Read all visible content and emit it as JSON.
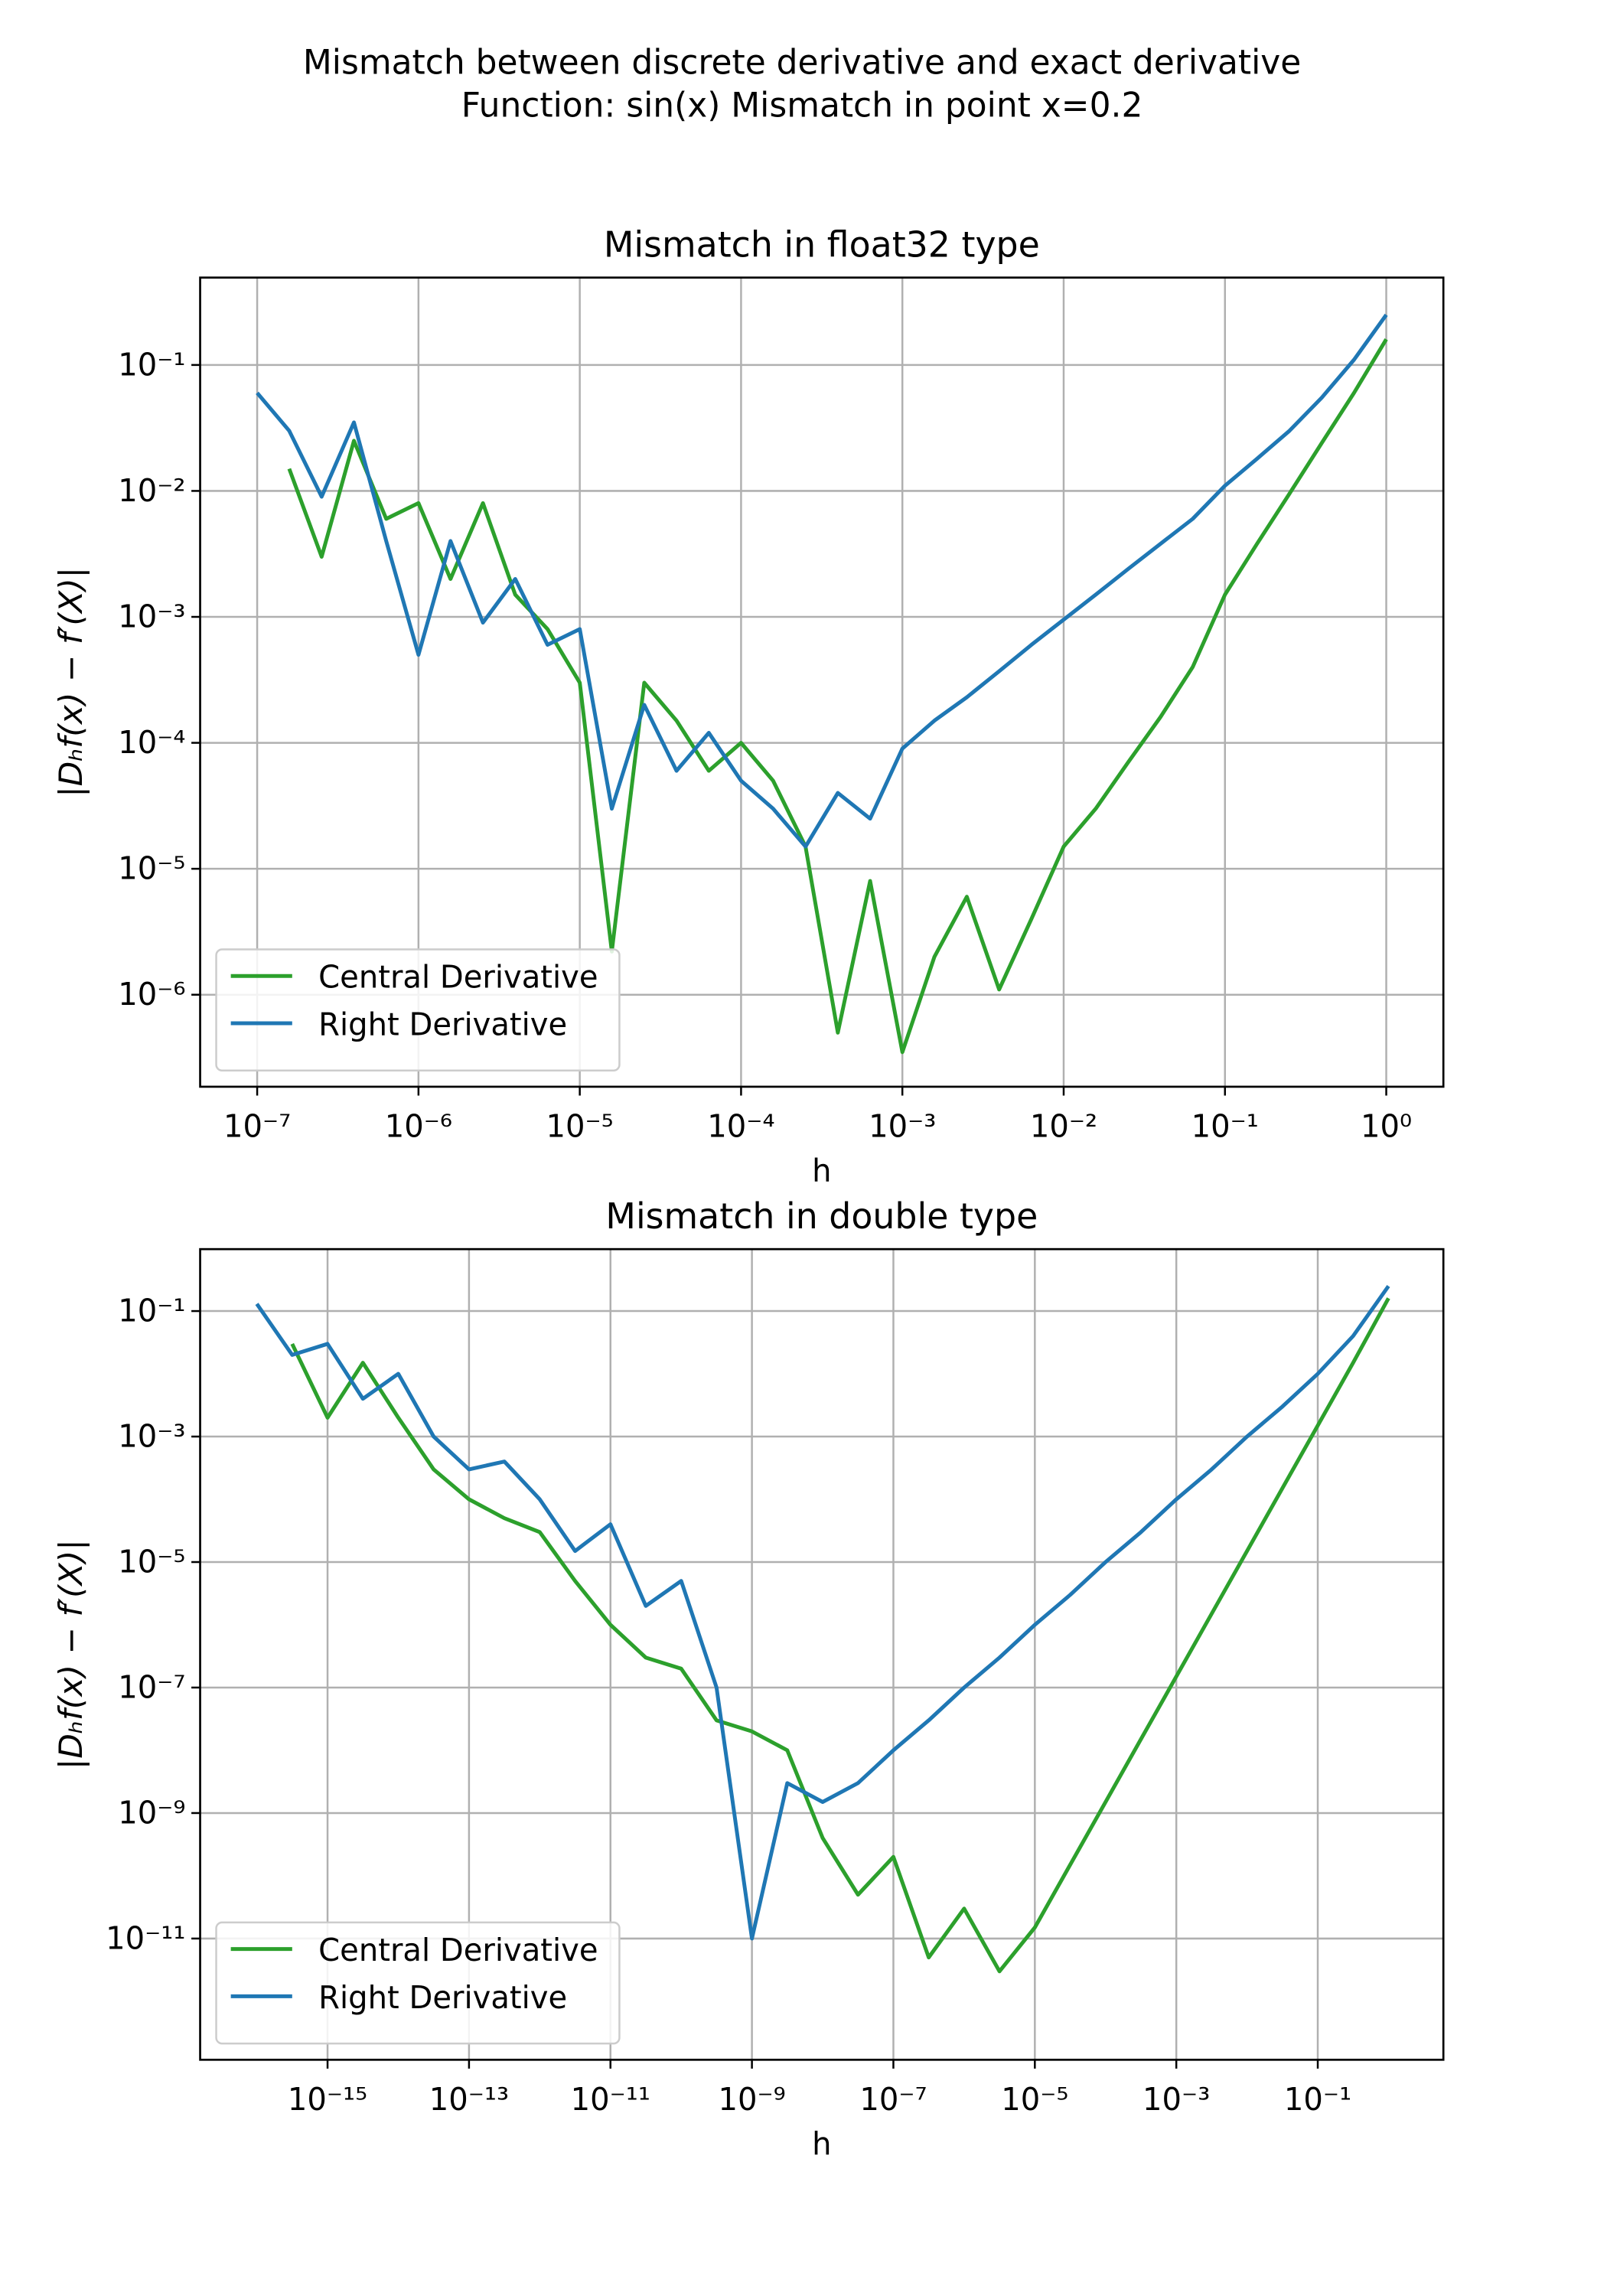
{
  "figure": {
    "title": "Mismatch between discrete derivative and exact derivative",
    "subtitle": "Function: sin(x) Mismatch in point x=0.2"
  },
  "chart_data": [
    {
      "type": "line",
      "title": "Mismatch in float32 type",
      "xlabel": "h",
      "ylabel": "|Dₕf(x) − f′(X)|",
      "xscale": "log",
      "yscale": "log",
      "grid": true,
      "legend": "lower left",
      "xlim": [
        4.43e-08,
        2.26
      ],
      "ylim": [
        1.86e-07,
        0.494
      ],
      "xticks": [
        {
          "value": 1e-07,
          "label": "10⁻⁷"
        },
        {
          "value": 1e-06,
          "label": "10⁻⁶"
        },
        {
          "value": 1e-05,
          "label": "10⁻⁵"
        },
        {
          "value": 0.0001,
          "label": "10⁻⁴"
        },
        {
          "value": 0.001,
          "label": "10⁻³"
        },
        {
          "value": 0.01,
          "label": "10⁻²"
        },
        {
          "value": 0.1,
          "label": "10⁻¹"
        },
        {
          "value": 1,
          "label": "10⁰"
        }
      ],
      "yticks": [
        {
          "value": 1e-06,
          "label": "10⁻⁶"
        },
        {
          "value": 1e-05,
          "label": "10⁻⁵"
        },
        {
          "value": 0.0001,
          "label": "10⁻⁴"
        },
        {
          "value": 0.001,
          "label": "10⁻³"
        },
        {
          "value": 0.01,
          "label": "10⁻²"
        },
        {
          "value": 0.1,
          "label": "10⁻¹"
        }
      ],
      "x": [
        1e-07,
        1.58e-07,
        2.51e-07,
        3.98e-07,
        6.31e-07,
        1e-06,
        1.58e-06,
        2.51e-06,
        3.98e-06,
        6.31e-06,
        1e-05,
        1.58e-05,
        2.51e-05,
        3.98e-05,
        6.31e-05,
        0.0001,
        0.000158,
        0.000251,
        0.000398,
        0.000631,
        0.001,
        0.00158,
        0.00251,
        0.00398,
        0.00631,
        0.01,
        0.0158,
        0.0251,
        0.0398,
        0.0631,
        0.1,
        0.158,
        0.251,
        0.398,
        0.631,
        1
      ],
      "series": [
        {
          "name": "Central Derivative",
          "color": "#2ca02c",
          "values": [
            null,
            0.015,
            0.003,
            0.025,
            0.006,
            0.008,
            0.002,
            0.008,
            0.0015,
            0.0008,
            0.0003,
            2.2e-06,
            0.0003,
            0.00015,
            6e-05,
            0.0001,
            5e-05,
            1.5e-05,
            5e-07,
            8e-06,
            3.5e-07,
            2e-06,
            6e-06,
            1.1e-06,
            4e-06,
            1.5e-05,
            3e-05,
            7e-05,
            0.00016,
            0.0004,
            0.0015,
            0.0038,
            0.0095,
            0.024,
            0.06,
            0.16
          ]
        },
        {
          "name": "Right Derivative",
          "color": "#1f77b4",
          "values": [
            0.06,
            0.03,
            0.009,
            0.035,
            0.004,
            0.0005,
            0.004,
            0.0009,
            0.002,
            0.0006,
            0.0008,
            3e-05,
            0.0002,
            6e-05,
            0.00012,
            5e-05,
            3e-05,
            1.5e-05,
            4e-05,
            2.5e-05,
            9e-05,
            0.00015,
            0.00023,
            0.00037,
            0.0006,
            0.00095,
            0.0015,
            0.0024,
            0.0038,
            0.006,
            0.011,
            0.018,
            0.03,
            0.055,
            0.11,
            0.25
          ]
        }
      ]
    },
    {
      "type": "line",
      "title": "Mismatch in double type",
      "xlabel": "h",
      "ylabel": "|Dₕf(x) − f′(X)|",
      "xscale": "log",
      "yscale": "log",
      "grid": true,
      "legend": "lower left",
      "xlim": [
        1.58e-17,
        5.97
      ],
      "ylim": [
        1.17e-13,
        0.97
      ],
      "xticks": [
        {
          "value": 1e-15,
          "label": "10⁻¹⁵"
        },
        {
          "value": 1e-13,
          "label": "10⁻¹³"
        },
        {
          "value": 1e-11,
          "label": "10⁻¹¹"
        },
        {
          "value": 1e-09,
          "label": "10⁻⁹"
        },
        {
          "value": 1e-07,
          "label": "10⁻⁷"
        },
        {
          "value": 1e-05,
          "label": "10⁻⁵"
        },
        {
          "value": 0.001,
          "label": "10⁻³"
        },
        {
          "value": 0.1,
          "label": "10⁻¹"
        }
      ],
      "yticks": [
        {
          "value": 1e-11,
          "label": "10⁻¹¹"
        },
        {
          "value": 1e-09,
          "label": "10⁻⁹"
        },
        {
          "value": 1e-07,
          "label": "10⁻⁷"
        },
        {
          "value": 1e-05,
          "label": "10⁻⁵"
        },
        {
          "value": 0.001,
          "label": "10⁻³"
        },
        {
          "value": 0.1,
          "label": "10⁻¹"
        }
      ],
      "x": [
        1e-16,
        3.16e-16,
        1e-15,
        3.16e-15,
        1e-14,
        3.16e-14,
        1e-13,
        3.16e-13,
        1e-12,
        3.16e-12,
        1e-11,
        3.16e-11,
        1e-10,
        3.16e-10,
        1e-09,
        3.16e-09,
        1e-08,
        3.16e-08,
        1e-07,
        3.16e-07,
        1e-06,
        3.16e-06,
        1e-05,
        3.16e-05,
        0.0001,
        0.000316,
        0.001,
        0.00316,
        0.01,
        0.0316,
        0.1,
        0.316,
        1
      ],
      "series": [
        {
          "name": "Central Derivative",
          "color": "#2ca02c",
          "values": [
            null,
            0.03,
            0.002,
            0.015,
            0.002,
            0.0003,
            0.0001,
            5e-05,
            3e-05,
            5e-06,
            1e-06,
            3e-07,
            2e-07,
            3e-08,
            2e-08,
            1e-08,
            4e-10,
            5e-11,
            2e-10,
            5e-12,
            3e-11,
            3e-12,
            1.5e-11,
            1.5e-10,
            1.5e-09,
            1.5e-08,
            1.5e-07,
            1.5e-06,
            1.5e-05,
            0.00015,
            0.0015,
            0.015,
            0.16
          ]
        },
        {
          "name": "Right Derivative",
          "color": "#1f77b4",
          "values": [
            0.13,
            0.02,
            0.03,
            0.004,
            0.01,
            0.001,
            0.0003,
            0.0004,
            0.0001,
            1.5e-05,
            4e-05,
            2e-06,
            5e-06,
            1e-07,
            1e-11,
            3e-09,
            1.5e-09,
            3e-09,
            1e-08,
            3e-08,
            1e-07,
            3e-07,
            1e-06,
            3e-06,
            1e-05,
            3e-05,
            0.0001,
            0.0003,
            0.001,
            0.003,
            0.01,
            0.04,
            0.25
          ]
        }
      ]
    }
  ]
}
